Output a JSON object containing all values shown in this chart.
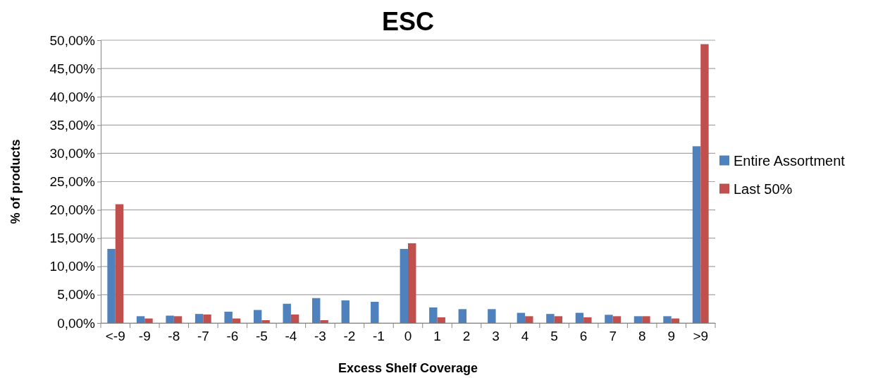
{
  "chart_data": {
    "type": "bar",
    "title": "ESC",
    "xlabel": "Excess Shelf Coverage",
    "ylabel": "% of products",
    "categories": [
      "<-9",
      "-9",
      "-8",
      "-7",
      "-6",
      "-5",
      "-4",
      "-3",
      "-2",
      "-1",
      "0",
      "1",
      "2",
      "3",
      "4",
      "5",
      "6",
      "7",
      "8",
      "9",
      ">9"
    ],
    "series": [
      {
        "name": "Entire Assortment",
        "color": "#4f81bd",
        "values": [
          13.1,
          1.2,
          1.3,
          1.6,
          2.0,
          2.3,
          3.4,
          4.4,
          4.0,
          3.75,
          13.1,
          2.75,
          2.45,
          2.45,
          1.8,
          1.6,
          1.8,
          1.45,
          1.2,
          1.2,
          31.25
        ]
      },
      {
        "name": "Last 50%",
        "color": "#c0504d",
        "values": [
          21.0,
          0.8,
          1.2,
          1.5,
          0.8,
          0.5,
          1.5,
          0.5,
          0,
          0,
          14.1,
          1.0,
          0,
          0,
          1.2,
          1.2,
          1.0,
          1.2,
          1.2,
          0.8,
          49.3
        ]
      }
    ],
    "ylim": [
      0,
      50
    ],
    "yticks": [
      {
        "value": 0,
        "label": "0,00%"
      },
      {
        "value": 5,
        "label": "5,00%"
      },
      {
        "value": 10,
        "label": "10,00%"
      },
      {
        "value": 15,
        "label": "15,00%"
      },
      {
        "value": 20,
        "label": "20,00%"
      },
      {
        "value": 25,
        "label": "25,00%"
      },
      {
        "value": 30,
        "label": "30,00%"
      },
      {
        "value": 35,
        "label": "35,00%"
      },
      {
        "value": 40,
        "label": "40,00%"
      },
      {
        "value": 45,
        "label": "45,00%"
      },
      {
        "value": 50,
        "label": "50,00%"
      }
    ],
    "grid": "y",
    "legend": "right"
  }
}
